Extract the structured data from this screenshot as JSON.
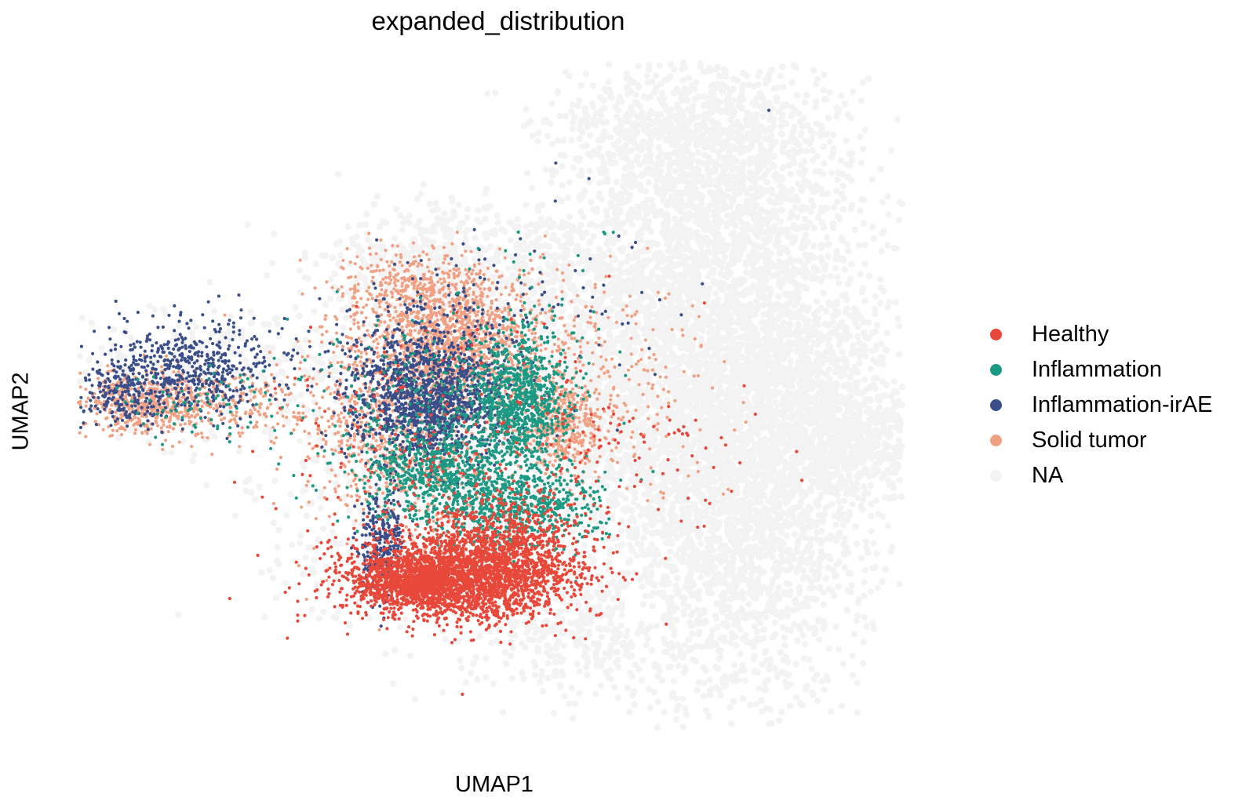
{
  "chart_data": {
    "type": "scatter",
    "title": "expanded_distribution",
    "xlabel": "UMAP1",
    "ylabel": "UMAP2",
    "grid": false,
    "axes_visible": false,
    "legend_placement": "right",
    "series": [
      {
        "name": "Healthy",
        "color": "#e8483a",
        "clusters": [
          {
            "cx": 8.4,
            "cy": 2.2,
            "sx": 1.2,
            "sy": 0.45,
            "n": 2600
          },
          {
            "cx": 7.3,
            "cy": 2.1,
            "sx": 0.6,
            "sy": 0.25,
            "n": 600
          },
          {
            "cx": 9.4,
            "cy": 3.0,
            "sx": 0.9,
            "sy": 0.5,
            "n": 500
          },
          {
            "cx": 8.0,
            "cy": 4.6,
            "sx": 2.0,
            "sy": 1.4,
            "n": 250
          },
          {
            "cx": 12.2,
            "cy": 4.8,
            "sx": 1.3,
            "sy": 0.9,
            "n": 70
          }
        ]
      },
      {
        "name": "Inflammation",
        "color": "#1d9a84",
        "clusters": [
          {
            "cx": 9.6,
            "cy": 5.9,
            "sx": 0.55,
            "sy": 0.75,
            "n": 900
          },
          {
            "cx": 8.0,
            "cy": 4.3,
            "sx": 0.9,
            "sy": 0.45,
            "n": 600
          },
          {
            "cx": 9.6,
            "cy": 3.6,
            "sx": 0.9,
            "sy": 0.45,
            "n": 600
          },
          {
            "cx": 7.6,
            "cy": 5.6,
            "sx": 1.3,
            "sy": 1.1,
            "n": 300
          },
          {
            "cx": 2.8,
            "cy": 5.8,
            "sx": 1.2,
            "sy": 0.4,
            "n": 80
          },
          {
            "cx": 10.5,
            "cy": 8.3,
            "sx": 0.9,
            "sy": 0.9,
            "n": 30
          }
        ]
      },
      {
        "name": "Inflammation-irAE",
        "color": "#3a4f8a",
        "clusters": [
          {
            "cx": 7.6,
            "cy": 5.9,
            "sx": 0.85,
            "sy": 0.65,
            "n": 1300
          },
          {
            "cx": 2.5,
            "cy": 6.6,
            "sx": 1.0,
            "sy": 0.5,
            "n": 550
          },
          {
            "cx": 0.9,
            "cy": 6.0,
            "sx": 0.5,
            "sy": 0.3,
            "n": 180
          },
          {
            "cx": 6.6,
            "cy": 2.9,
            "sx": 0.25,
            "sy": 0.6,
            "n": 300
          },
          {
            "cx": 8.0,
            "cy": 7.0,
            "sx": 1.3,
            "sy": 0.9,
            "n": 300
          },
          {
            "cx": 11.0,
            "cy": 8.5,
            "sx": 1.3,
            "sy": 1.1,
            "n": 35
          }
        ]
      },
      {
        "name": "Solid tumor",
        "color": "#f0a184",
        "clusters": [
          {
            "cx": 8.3,
            "cy": 7.1,
            "sx": 1.0,
            "sy": 0.7,
            "n": 1300
          },
          {
            "cx": 1.5,
            "cy": 5.9,
            "sx": 0.7,
            "sy": 0.35,
            "n": 500
          },
          {
            "cx": 3.5,
            "cy": 5.8,
            "sx": 1.2,
            "sy": 0.35,
            "n": 250
          },
          {
            "cx": 7.0,
            "cy": 5.2,
            "sx": 1.1,
            "sy": 1.2,
            "n": 900
          },
          {
            "cx": 10.6,
            "cy": 5.4,
            "sx": 0.45,
            "sy": 0.5,
            "n": 400
          },
          {
            "cx": 11.7,
            "cy": 6.3,
            "sx": 1.1,
            "sy": 1.2,
            "n": 220
          },
          {
            "cx": 7.4,
            "cy": 8.3,
            "sx": 0.9,
            "sy": 0.4,
            "n": 300
          }
        ]
      },
      {
        "name": "NA",
        "color": "#f3f3f3",
        "clusters": [
          {
            "cx": 14.0,
            "cy": 9.5,
            "sx": 1.6,
            "sy": 2.0,
            "n": 2200
          },
          {
            "cx": 14.5,
            "cy": 3.5,
            "sx": 1.4,
            "sy": 2.0,
            "n": 2200
          },
          {
            "cx": 15.5,
            "cy": 6.0,
            "sx": 1.4,
            "sy": 1.2,
            "n": 1200
          },
          {
            "cx": 17.0,
            "cy": 5.0,
            "sx": 0.7,
            "sy": 0.5,
            "n": 300
          },
          {
            "cx": 12.0,
            "cy": 6.0,
            "sx": 1.2,
            "sy": 1.6,
            "n": 1300
          },
          {
            "cx": 8.5,
            "cy": 8.5,
            "sx": 1.6,
            "sy": 0.8,
            "n": 800
          },
          {
            "cx": 8.0,
            "cy": 4.5,
            "sx": 2.0,
            "sy": 1.6,
            "n": 900
          },
          {
            "cx": 2.5,
            "cy": 6.5,
            "sx": 1.6,
            "sy": 0.6,
            "n": 300
          },
          {
            "cx": 11.0,
            "cy": 1.0,
            "sx": 1.2,
            "sy": 0.7,
            "n": 300
          },
          {
            "cx": 13.0,
            "cy": 11.5,
            "sx": 1.3,
            "sy": 0.6,
            "n": 400
          }
        ]
      }
    ],
    "xlim": [
      0,
      18
    ],
    "ylim": [
      -1,
      13
    ]
  }
}
